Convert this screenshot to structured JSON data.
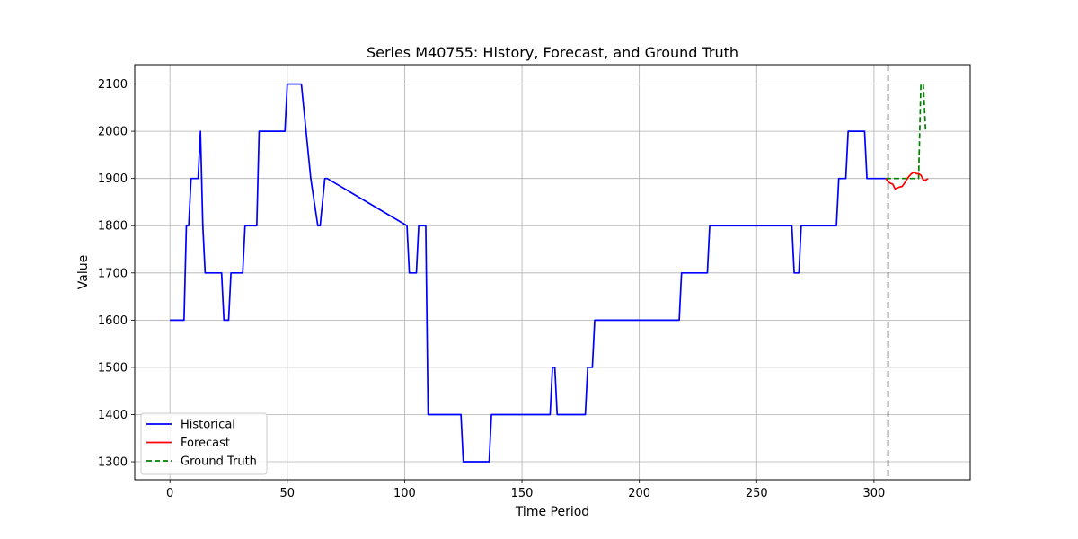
{
  "chart_data": {
    "type": "line",
    "title": "Series M40755: History, Forecast, and Ground Truth",
    "xlabel": "Time Period",
    "ylabel": "Value",
    "xlim": [
      -15,
      341
    ],
    "ylim": [
      1262,
      2141
    ],
    "xticks": [
      0,
      50,
      100,
      150,
      200,
      250,
      300
    ],
    "yticks": [
      1300,
      1400,
      1500,
      1600,
      1700,
      1800,
      1900,
      2000,
      2100
    ],
    "grid": true,
    "legend_position": "lower-left",
    "forecast_start": 306,
    "vline_color": "#808080",
    "series": [
      {
        "name": "Historical",
        "color": "#0000ff",
        "style": "solid",
        "x": [
          0,
          6,
          7,
          8,
          9,
          10,
          12,
          13,
          14,
          15,
          22,
          23,
          25,
          26,
          31,
          32,
          37,
          38,
          49,
          50,
          56,
          60,
          63,
          64,
          66,
          67,
          101,
          102,
          105,
          106,
          109,
          110,
          124,
          125,
          136,
          137,
          162,
          163,
          164,
          165,
          177,
          178,
          180,
          181,
          217,
          218,
          229,
          230,
          265,
          266,
          268,
          269,
          284,
          285,
          288,
          289,
          296,
          297,
          305
        ],
        "values": [
          1600,
          1600,
          1800,
          1800,
          1900,
          1900,
          1900,
          2000,
          1800,
          1700,
          1700,
          1600,
          1600,
          1700,
          1700,
          1800,
          1800,
          2000,
          2000,
          2100,
          2100,
          1900,
          1800,
          1800,
          1900,
          1900,
          1800,
          1700,
          1700,
          1800,
          1800,
          1400,
          1400,
          1300,
          1300,
          1400,
          1400,
          1500,
          1500,
          1400,
          1400,
          1500,
          1500,
          1600,
          1600,
          1700,
          1700,
          1800,
          1800,
          1700,
          1700,
          1800,
          1800,
          1900,
          1900,
          2000,
          2000,
          1900,
          1900
        ]
      },
      {
        "name": "Forecast",
        "color": "#ff0000",
        "style": "solid",
        "x": [
          305,
          306,
          307,
          308,
          309,
          310,
          311,
          312,
          313,
          314,
          315,
          316,
          317,
          318,
          319,
          320,
          321,
          322,
          323
        ],
        "values": [
          1900,
          1893,
          1890,
          1888,
          1878,
          1880,
          1882,
          1883,
          1890,
          1898,
          1905,
          1910,
          1913,
          1910,
          1910,
          1907,
          1897,
          1896,
          1900
        ]
      },
      {
        "name": "Ground Truth",
        "color": "#008000",
        "style": "dashed",
        "x": [
          305,
          306,
          307,
          308,
          309,
          310,
          311,
          312,
          313,
          314,
          315,
          316,
          317,
          318,
          319,
          320,
          321,
          322
        ],
        "values": [
          1900,
          1900,
          1900,
          1900,
          1900,
          1900,
          1900,
          1900,
          1900,
          1900,
          1900,
          1900,
          1900,
          1900,
          1900,
          2100,
          2100,
          2000
        ]
      }
    ]
  }
}
